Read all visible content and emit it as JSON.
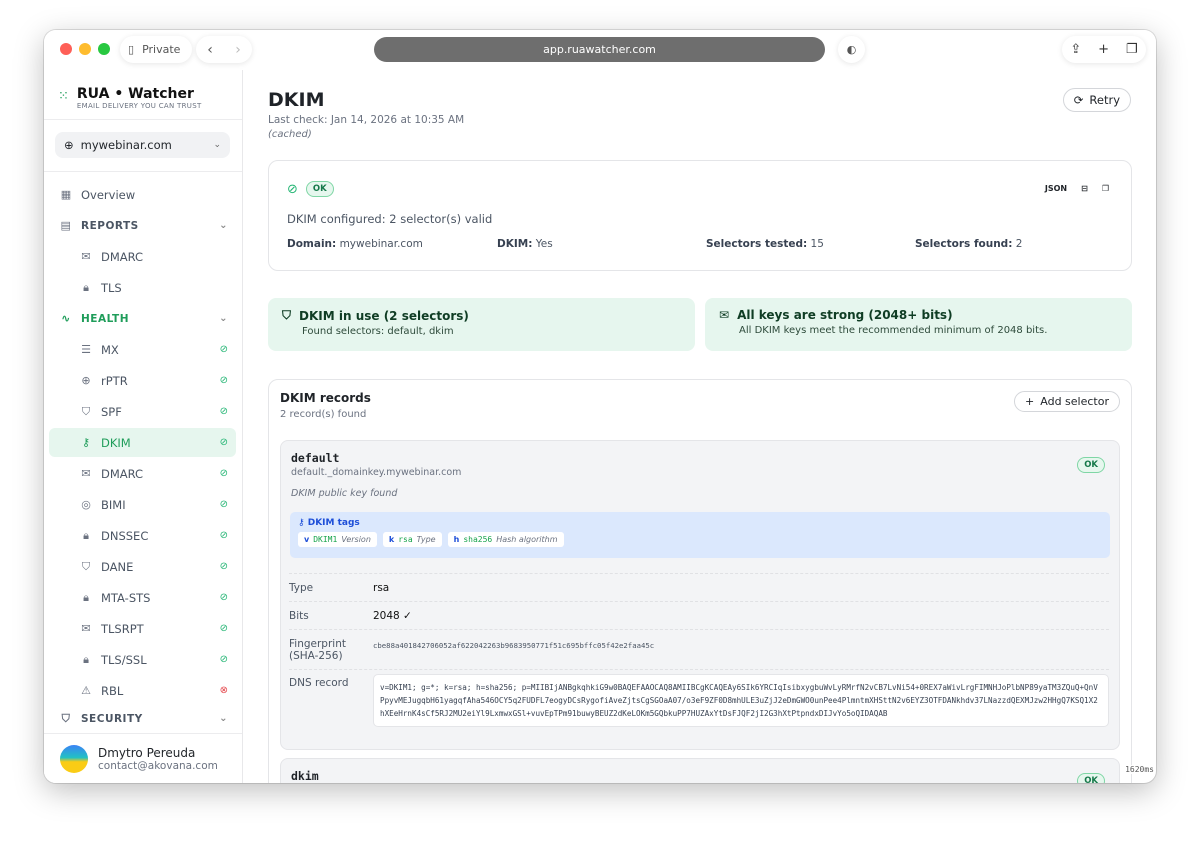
{
  "browser": {
    "private_label": "Private",
    "url": "app.ruawatcher.com"
  },
  "brand": {
    "name": "RUA • Watcher",
    "tagline": "EMAIL DELIVERY YOU CAN TRUST"
  },
  "domain_select": {
    "value": "mywebinar.com"
  },
  "nav": {
    "overview": "Overview",
    "reports": "REPORTS",
    "dmarc_r": "DMARC",
    "tls_r": "TLS",
    "health": "HEALTH",
    "security": "SECURITY",
    "health_items": [
      {
        "label": "MX",
        "icon": "server-icon",
        "status": "ok"
      },
      {
        "label": "rPTR",
        "icon": "globe-icon",
        "status": "ok"
      },
      {
        "label": "SPF",
        "icon": "shield-icon",
        "status": "ok"
      },
      {
        "label": "DKIM",
        "icon": "key-icon",
        "status": "ok"
      },
      {
        "label": "DMARC",
        "icon": "mail-icon",
        "status": "ok"
      },
      {
        "label": "BIMI",
        "icon": "fingerprint-icon",
        "status": "ok"
      },
      {
        "label": "DNSSEC",
        "icon": "lock-icon",
        "status": "ok"
      },
      {
        "label": "DANE",
        "icon": "shield-icon",
        "status": "ok"
      },
      {
        "label": "MTA-STS",
        "icon": "lock-icon",
        "status": "ok"
      },
      {
        "label": "TLSRPT",
        "icon": "mail-icon",
        "status": "ok"
      },
      {
        "label": "TLS/SSL",
        "icon": "lock-icon",
        "status": "ok"
      },
      {
        "label": "RBL",
        "icon": "warning-icon",
        "status": "error"
      }
    ]
  },
  "user": {
    "name": "Dmytro Pereuda",
    "email": "contact@akovana.com"
  },
  "page": {
    "title": "DKIM",
    "last_check": "Last check: Jan 14, 2026 at 10:35 AM",
    "cached": "(cached)",
    "retry": "Retry"
  },
  "summary": {
    "status": "OK",
    "json": "JSON",
    "message": "DKIM configured: 2 selector(s) valid",
    "fields": [
      {
        "k": "Domain:",
        "v": "mywebinar.com"
      },
      {
        "k": "DKIM:",
        "v": "Yes"
      },
      {
        "k": "Selectors tested:",
        "v": "15"
      },
      {
        "k": "Selectors found:",
        "v": "2"
      }
    ]
  },
  "info": [
    {
      "title": "DKIM in use (2 selectors)",
      "text": "Found selectors: default, dkim"
    },
    {
      "title": "All keys are strong (2048+ bits)",
      "text": "All DKIM keys meet the recommended minimum of 2048 bits."
    }
  ],
  "records": {
    "title": "DKIM records",
    "count": "2 record(s) found",
    "add": "Add selector",
    "items": [
      {
        "selector": "default",
        "host": "default._domainkey.mywebinar.com",
        "status": "OK",
        "note": "DKIM public key found",
        "tags_title": "DKIM tags",
        "tags": [
          {
            "k": "v",
            "v": "DKIM1",
            "d": "Version"
          },
          {
            "k": "k",
            "v": "rsa",
            "d": "Type"
          },
          {
            "k": "h",
            "v": "sha256",
            "d": "Hash algorithm"
          }
        ],
        "rows": [
          {
            "k": "Type",
            "v": "rsa"
          },
          {
            "k": "Bits",
            "v": "2048 ✓"
          },
          {
            "k": "Fingerprint (SHA-256)",
            "v": "cbe88a401842706052af622042263b9683950771f51c695bffc05f42e2faa45c"
          },
          {
            "k": "DNS record",
            "v": "v=DKIM1; g=*; k=rsa; h=sha256; p=MIIBIjANBgkqhkiG9w0BAQEFAAOCAQ8AMIIBCgKCAQEAy6SIk6YRCIqIsibxygbuWvLyRMrfN2vCB7LvNi54+0REX7aWivLrgFIMNHJoPlbNP89yaTM3ZQuQ+QnVPpyvMEJugqbH61yagqfAha546OCY5q2FUDFL7eogyDCsRygofiAveZjtsCgSGOaA07/o3eF9ZF0D8mhULE3uZjJ2eDmGWO0unPee4PlmntmXHSttN2v6EYZ3OTFDANkhdv37LNazzdQEXMJzw2HHgQ7KSQ1X2hXEeHrnK4sCf5RJ2MU2eiYl9LxmwxGSl+vuvEpTPm91buwyBEUZ2dKeLOKm5GQbkuPP7HUZAxYtDsFJQF2jI2G3hXtPtpndxDIJvYo5oQIDAQAB"
          }
        ]
      },
      {
        "selector": "dkim",
        "status": "OK"
      }
    ]
  },
  "timing": "1620ms"
}
